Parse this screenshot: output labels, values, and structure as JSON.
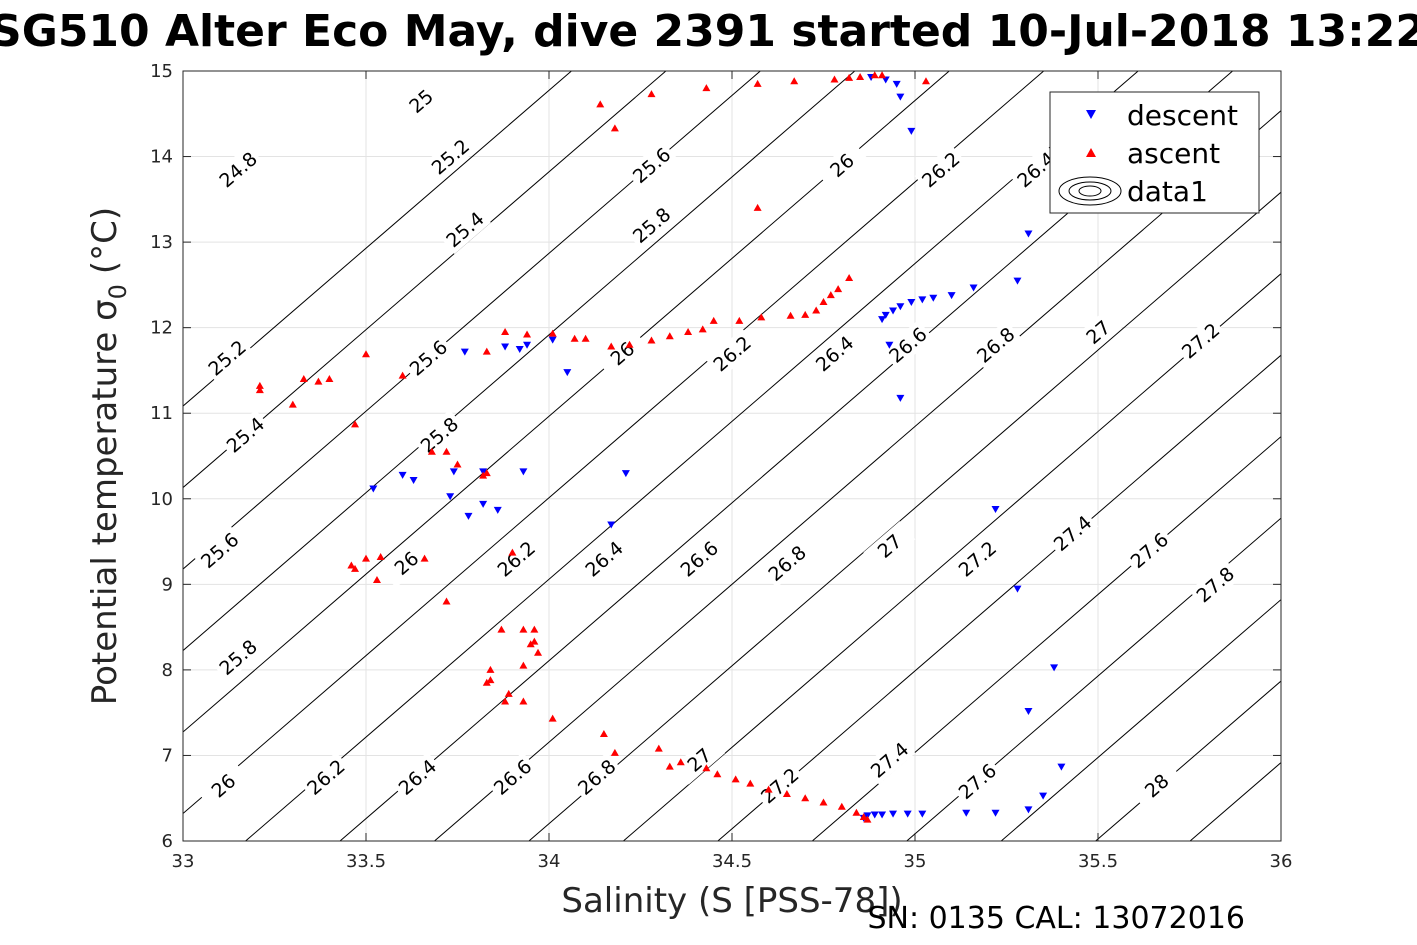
{
  "chart_data": {
    "type": "scatter",
    "title": "SG510 Alter Eco May, dive 2391 started 10-Jul-2018 13:22",
    "xlabel": "Salinity (S [PSS-78])",
    "ylabel": "Potential temperature σ",
    "ylabel_sub": "0",
    "ylabel_unit": "(°C)",
    "xlim": [
      33,
      36
    ],
    "ylim": [
      6,
      15
    ],
    "x_ticks": [
      "33",
      "33.5",
      "34",
      "34.5",
      "35",
      "35.5",
      "36"
    ],
    "y_ticks": [
      "6",
      "7",
      "8",
      "9",
      "10",
      "11",
      "12",
      "13",
      "14",
      "15"
    ],
    "grid": true,
    "legend_position": "top-right",
    "legend": [
      "descent",
      "ascent",
      "data1"
    ],
    "footnote": "SN: 0135  CAL: 13072016",
    "series": [
      {
        "name": "descent",
        "marker": "triangle-down",
        "color": "#0000ff",
        "points": [
          [
            34.88,
            14.93
          ],
          [
            34.92,
            14.9
          ],
          [
            34.95,
            14.85
          ],
          [
            34.96,
            14.7
          ],
          [
            34.99,
            14.3
          ],
          [
            35.31,
            13.1
          ],
          [
            35.28,
            12.55
          ],
          [
            35.16,
            12.47
          ],
          [
            35.1,
            12.38
          ],
          [
            35.05,
            12.35
          ],
          [
            35.02,
            12.33
          ],
          [
            34.99,
            12.3
          ],
          [
            34.96,
            12.25
          ],
          [
            34.94,
            12.2
          ],
          [
            34.92,
            12.15
          ],
          [
            34.91,
            12.1
          ],
          [
            34.93,
            11.8
          ],
          [
            34.96,
            11.18
          ],
          [
            33.77,
            11.72
          ],
          [
            33.88,
            11.78
          ],
          [
            33.92,
            11.75
          ],
          [
            33.94,
            11.8
          ],
          [
            34.01,
            11.86
          ],
          [
            34.05,
            11.48
          ],
          [
            33.52,
            10.12
          ],
          [
            33.6,
            10.28
          ],
          [
            33.63,
            10.22
          ],
          [
            33.74,
            10.32
          ],
          [
            33.82,
            10.32
          ],
          [
            33.93,
            10.32
          ],
          [
            34.21,
            10.3
          ],
          [
            33.73,
            10.03
          ],
          [
            33.82,
            9.94
          ],
          [
            33.78,
            9.8
          ],
          [
            33.86,
            9.87
          ],
          [
            34.17,
            9.7
          ],
          [
            35.22,
            9.88
          ],
          [
            35.28,
            8.95
          ],
          [
            35.38,
            8.03
          ],
          [
            35.31,
            7.52
          ],
          [
            35.4,
            6.87
          ],
          [
            35.35,
            6.53
          ],
          [
            35.31,
            6.37
          ],
          [
            35.22,
            6.33
          ],
          [
            35.14,
            6.33
          ],
          [
            35.02,
            6.32
          ],
          [
            34.98,
            6.32
          ],
          [
            34.94,
            6.32
          ],
          [
            34.91,
            6.31
          ],
          [
            34.89,
            6.31
          ],
          [
            34.87,
            6.3
          ],
          [
            34.86,
            6.27
          ]
        ]
      },
      {
        "name": "ascent",
        "marker": "triangle-up",
        "color": "#ff0000",
        "points": [
          [
            34.14,
            14.61
          ],
          [
            34.18,
            14.33
          ],
          [
            34.28,
            14.73
          ],
          [
            34.43,
            14.8
          ],
          [
            34.57,
            14.85
          ],
          [
            34.67,
            14.88
          ],
          [
            34.78,
            14.9
          ],
          [
            34.82,
            14.92
          ],
          [
            34.85,
            14.93
          ],
          [
            34.89,
            14.95
          ],
          [
            34.91,
            14.95
          ],
          [
            35.03,
            14.88
          ],
          [
            34.57,
            13.4
          ],
          [
            34.82,
            12.58
          ],
          [
            34.79,
            12.45
          ],
          [
            34.77,
            12.38
          ],
          [
            34.75,
            12.3
          ],
          [
            34.73,
            12.2
          ],
          [
            34.7,
            12.15
          ],
          [
            34.66,
            12.14
          ],
          [
            34.58,
            12.12
          ],
          [
            34.52,
            12.08
          ],
          [
            34.45,
            12.08
          ],
          [
            34.42,
            11.98
          ],
          [
            34.38,
            11.95
          ],
          [
            34.33,
            11.9
          ],
          [
            34.28,
            11.85
          ],
          [
            34.22,
            11.8
          ],
          [
            34.17,
            11.78
          ],
          [
            34.1,
            11.87
          ],
          [
            34.07,
            11.87
          ],
          [
            34.01,
            11.93
          ],
          [
            33.94,
            11.92
          ],
          [
            33.88,
            11.95
          ],
          [
            33.83,
            11.72
          ],
          [
            33.6,
            11.44
          ],
          [
            33.5,
            11.69
          ],
          [
            33.4,
            11.4
          ],
          [
            33.37,
            11.37
          ],
          [
            33.33,
            11.4
          ],
          [
            33.3,
            11.1
          ],
          [
            33.21,
            11.32
          ],
          [
            33.21,
            11.27
          ],
          [
            33.47,
            10.87
          ],
          [
            33.68,
            10.55
          ],
          [
            33.72,
            10.55
          ],
          [
            33.75,
            10.4
          ],
          [
            33.83,
            10.3
          ],
          [
            33.82,
            10.27
          ],
          [
            33.9,
            9.37
          ],
          [
            33.46,
            9.22
          ],
          [
            33.47,
            9.18
          ],
          [
            33.5,
            9.3
          ],
          [
            33.54,
            9.32
          ],
          [
            33.53,
            9.05
          ],
          [
            33.66,
            9.3
          ],
          [
            33.72,
            8.8
          ],
          [
            33.93,
            8.47
          ],
          [
            33.87,
            8.47
          ],
          [
            33.96,
            8.47
          ],
          [
            33.96,
            8.33
          ],
          [
            33.95,
            8.3
          ],
          [
            33.97,
            8.2
          ],
          [
            33.93,
            8.05
          ],
          [
            33.84,
            8.0
          ],
          [
            33.83,
            7.85
          ],
          [
            33.84,
            7.88
          ],
          [
            33.89,
            7.72
          ],
          [
            33.88,
            7.63
          ],
          [
            33.93,
            7.63
          ],
          [
            34.01,
            7.43
          ],
          [
            34.15,
            7.25
          ],
          [
            34.18,
            7.03
          ],
          [
            34.3,
            7.08
          ],
          [
            34.33,
            6.87
          ],
          [
            34.36,
            6.92
          ],
          [
            34.43,
            6.85
          ],
          [
            34.46,
            6.78
          ],
          [
            34.51,
            6.72
          ],
          [
            34.55,
            6.67
          ],
          [
            34.6,
            6.6
          ],
          [
            34.65,
            6.55
          ],
          [
            34.7,
            6.5
          ],
          [
            34.75,
            6.45
          ],
          [
            34.8,
            6.4
          ],
          [
            34.84,
            6.33
          ],
          [
            34.86,
            6.28
          ],
          [
            34.87,
            6.25
          ]
        ]
      },
      {
        "name": "data1",
        "type": "contour",
        "color": "#000000",
        "levels": [
          24.8,
          25,
          25.2,
          25.4,
          25.6,
          25.8,
          26,
          26.2,
          26.4,
          26.6,
          26.8,
          27,
          27.2,
          27.4,
          27.6,
          27.8,
          28
        ],
        "label_points": [
          {
            "text": "24.8",
            "s": 33.15,
            "t": 13.85
          },
          {
            "text": "25",
            "s": 33.65,
            "t": 14.65
          },
          {
            "text": "25.2",
            "s": 33.73,
            "t": 14.0
          },
          {
            "text": "25.4",
            "s": 33.77,
            "t": 13.15
          },
          {
            "text": "25.6",
            "s": 34.28,
            "t": 13.9
          },
          {
            "text": "25.8",
            "s": 34.28,
            "t": 13.2
          },
          {
            "text": "26",
            "s": 34.8,
            "t": 13.9
          },
          {
            "text": "26.2",
            "s": 35.07,
            "t": 13.85
          },
          {
            "text": "26.4",
            "s": 35.33,
            "t": 13.85
          },
          {
            "text": "25.2",
            "s": 33.12,
            "t": 11.65
          },
          {
            "text": "25.6",
            "s": 33.67,
            "t": 11.65
          },
          {
            "text": "26",
            "s": 34.2,
            "t": 11.7
          },
          {
            "text": "26.2",
            "s": 34.5,
            "t": 11.7
          },
          {
            "text": "26.4",
            "s": 34.78,
            "t": 11.7
          },
          {
            "text": "26.6",
            "s": 34.98,
            "t": 11.8
          },
          {
            "text": "26.8",
            "s": 35.22,
            "t": 11.8
          },
          {
            "text": "27",
            "s": 35.5,
            "t": 11.95
          },
          {
            "text": "27.2",
            "s": 35.78,
            "t": 11.85
          },
          {
            "text": "25.4",
            "s": 33.17,
            "t": 10.75
          },
          {
            "text": "25.8",
            "s": 33.7,
            "t": 10.75
          },
          {
            "text": "25.6",
            "s": 33.1,
            "t": 9.4
          },
          {
            "text": "26",
            "s": 33.61,
            "t": 9.25
          },
          {
            "text": "26.2",
            "s": 33.91,
            "t": 9.3
          },
          {
            "text": "26.4",
            "s": 34.15,
            "t": 9.3
          },
          {
            "text": "26.6",
            "s": 34.41,
            "t": 9.3
          },
          {
            "text": "26.8",
            "s": 34.65,
            "t": 9.25
          },
          {
            "text": "27",
            "s": 34.93,
            "t": 9.45
          },
          {
            "text": "27.2",
            "s": 35.17,
            "t": 9.3
          },
          {
            "text": "27.4",
            "s": 35.43,
            "t": 9.6
          },
          {
            "text": "27.6",
            "s": 35.64,
            "t": 9.4
          },
          {
            "text": "27.8",
            "s": 35.82,
            "t": 9.0
          },
          {
            "text": "25.8",
            "s": 33.15,
            "t": 8.15
          },
          {
            "text": "26",
            "s": 33.11,
            "t": 6.65
          },
          {
            "text": "26.2",
            "s": 33.39,
            "t": 6.75
          },
          {
            "text": "26.4",
            "s": 33.64,
            "t": 6.75
          },
          {
            "text": "26.6",
            "s": 33.9,
            "t": 6.75
          },
          {
            "text": "26.8",
            "s": 34.13,
            "t": 6.75
          },
          {
            "text": "27",
            "s": 34.41,
            "t": 6.95
          },
          {
            "text": "27.2",
            "s": 34.63,
            "t": 6.65
          },
          {
            "text": "27.4",
            "s": 34.93,
            "t": 6.95
          },
          {
            "text": "27.6",
            "s": 35.17,
            "t": 6.7
          },
          {
            "text": "28",
            "s": 35.66,
            "t": 6.65
          }
        ]
      }
    ]
  }
}
